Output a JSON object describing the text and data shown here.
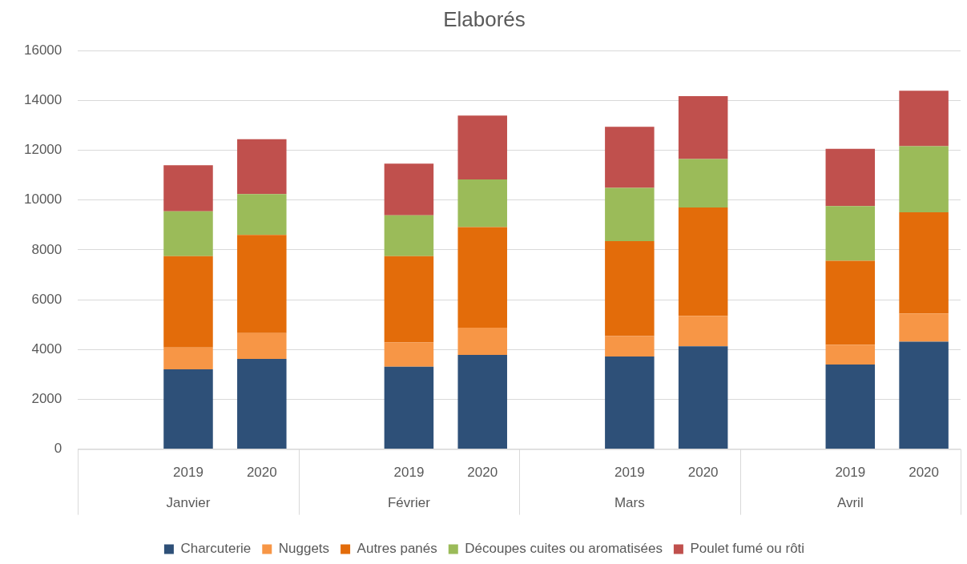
{
  "chart_data": {
    "type": "bar",
    "title": "Elaborés",
    "stacked": true,
    "categories": [
      null,
      "2019",
      "2020",
      null,
      "2019",
      "2020",
      null,
      "2019",
      "2020",
      null,
      "2019",
      "2020"
    ],
    "annotations": [
      "Janvier",
      "Février",
      "Mars",
      "Avril"
    ],
    "series": [
      {
        "name": "Charcuterie",
        "color": "#2e5078",
        "values": [
          null,
          3200,
          3620,
          null,
          3310,
          3780,
          null,
          3720,
          4130,
          null,
          3400,
          4310
        ]
      },
      {
        "name": "Nuggets",
        "color": "#f79646",
        "values": [
          null,
          880,
          1040,
          null,
          970,
          1100,
          null,
          820,
          1220,
          null,
          790,
          1140
        ]
      },
      {
        "name": "Autres panés",
        "color": "#e36c0a",
        "values": [
          null,
          3670,
          3940,
          null,
          3470,
          4030,
          null,
          3810,
          4350,
          null,
          3370,
          4060
        ]
      },
      {
        "name": "Découpes cuites ou aromatisées",
        "color": "#9bbb59",
        "values": [
          null,
          1800,
          1640,
          null,
          1640,
          1920,
          null,
          2140,
          1950,
          null,
          2200,
          2650
        ]
      },
      {
        "name": "Poulet fumé ou rôti",
        "color": "#c0504d",
        "values": [
          null,
          1850,
          2200,
          null,
          2070,
          2560,
          null,
          2450,
          2520,
          null,
          2300,
          2230
        ]
      }
    ],
    "ylim": [
      0,
      16000
    ],
    "yticks": [
      0,
      2000,
      4000,
      6000,
      8000,
      10000,
      12000,
      14000,
      16000
    ],
    "grid": "y",
    "legend": "bottom"
  }
}
